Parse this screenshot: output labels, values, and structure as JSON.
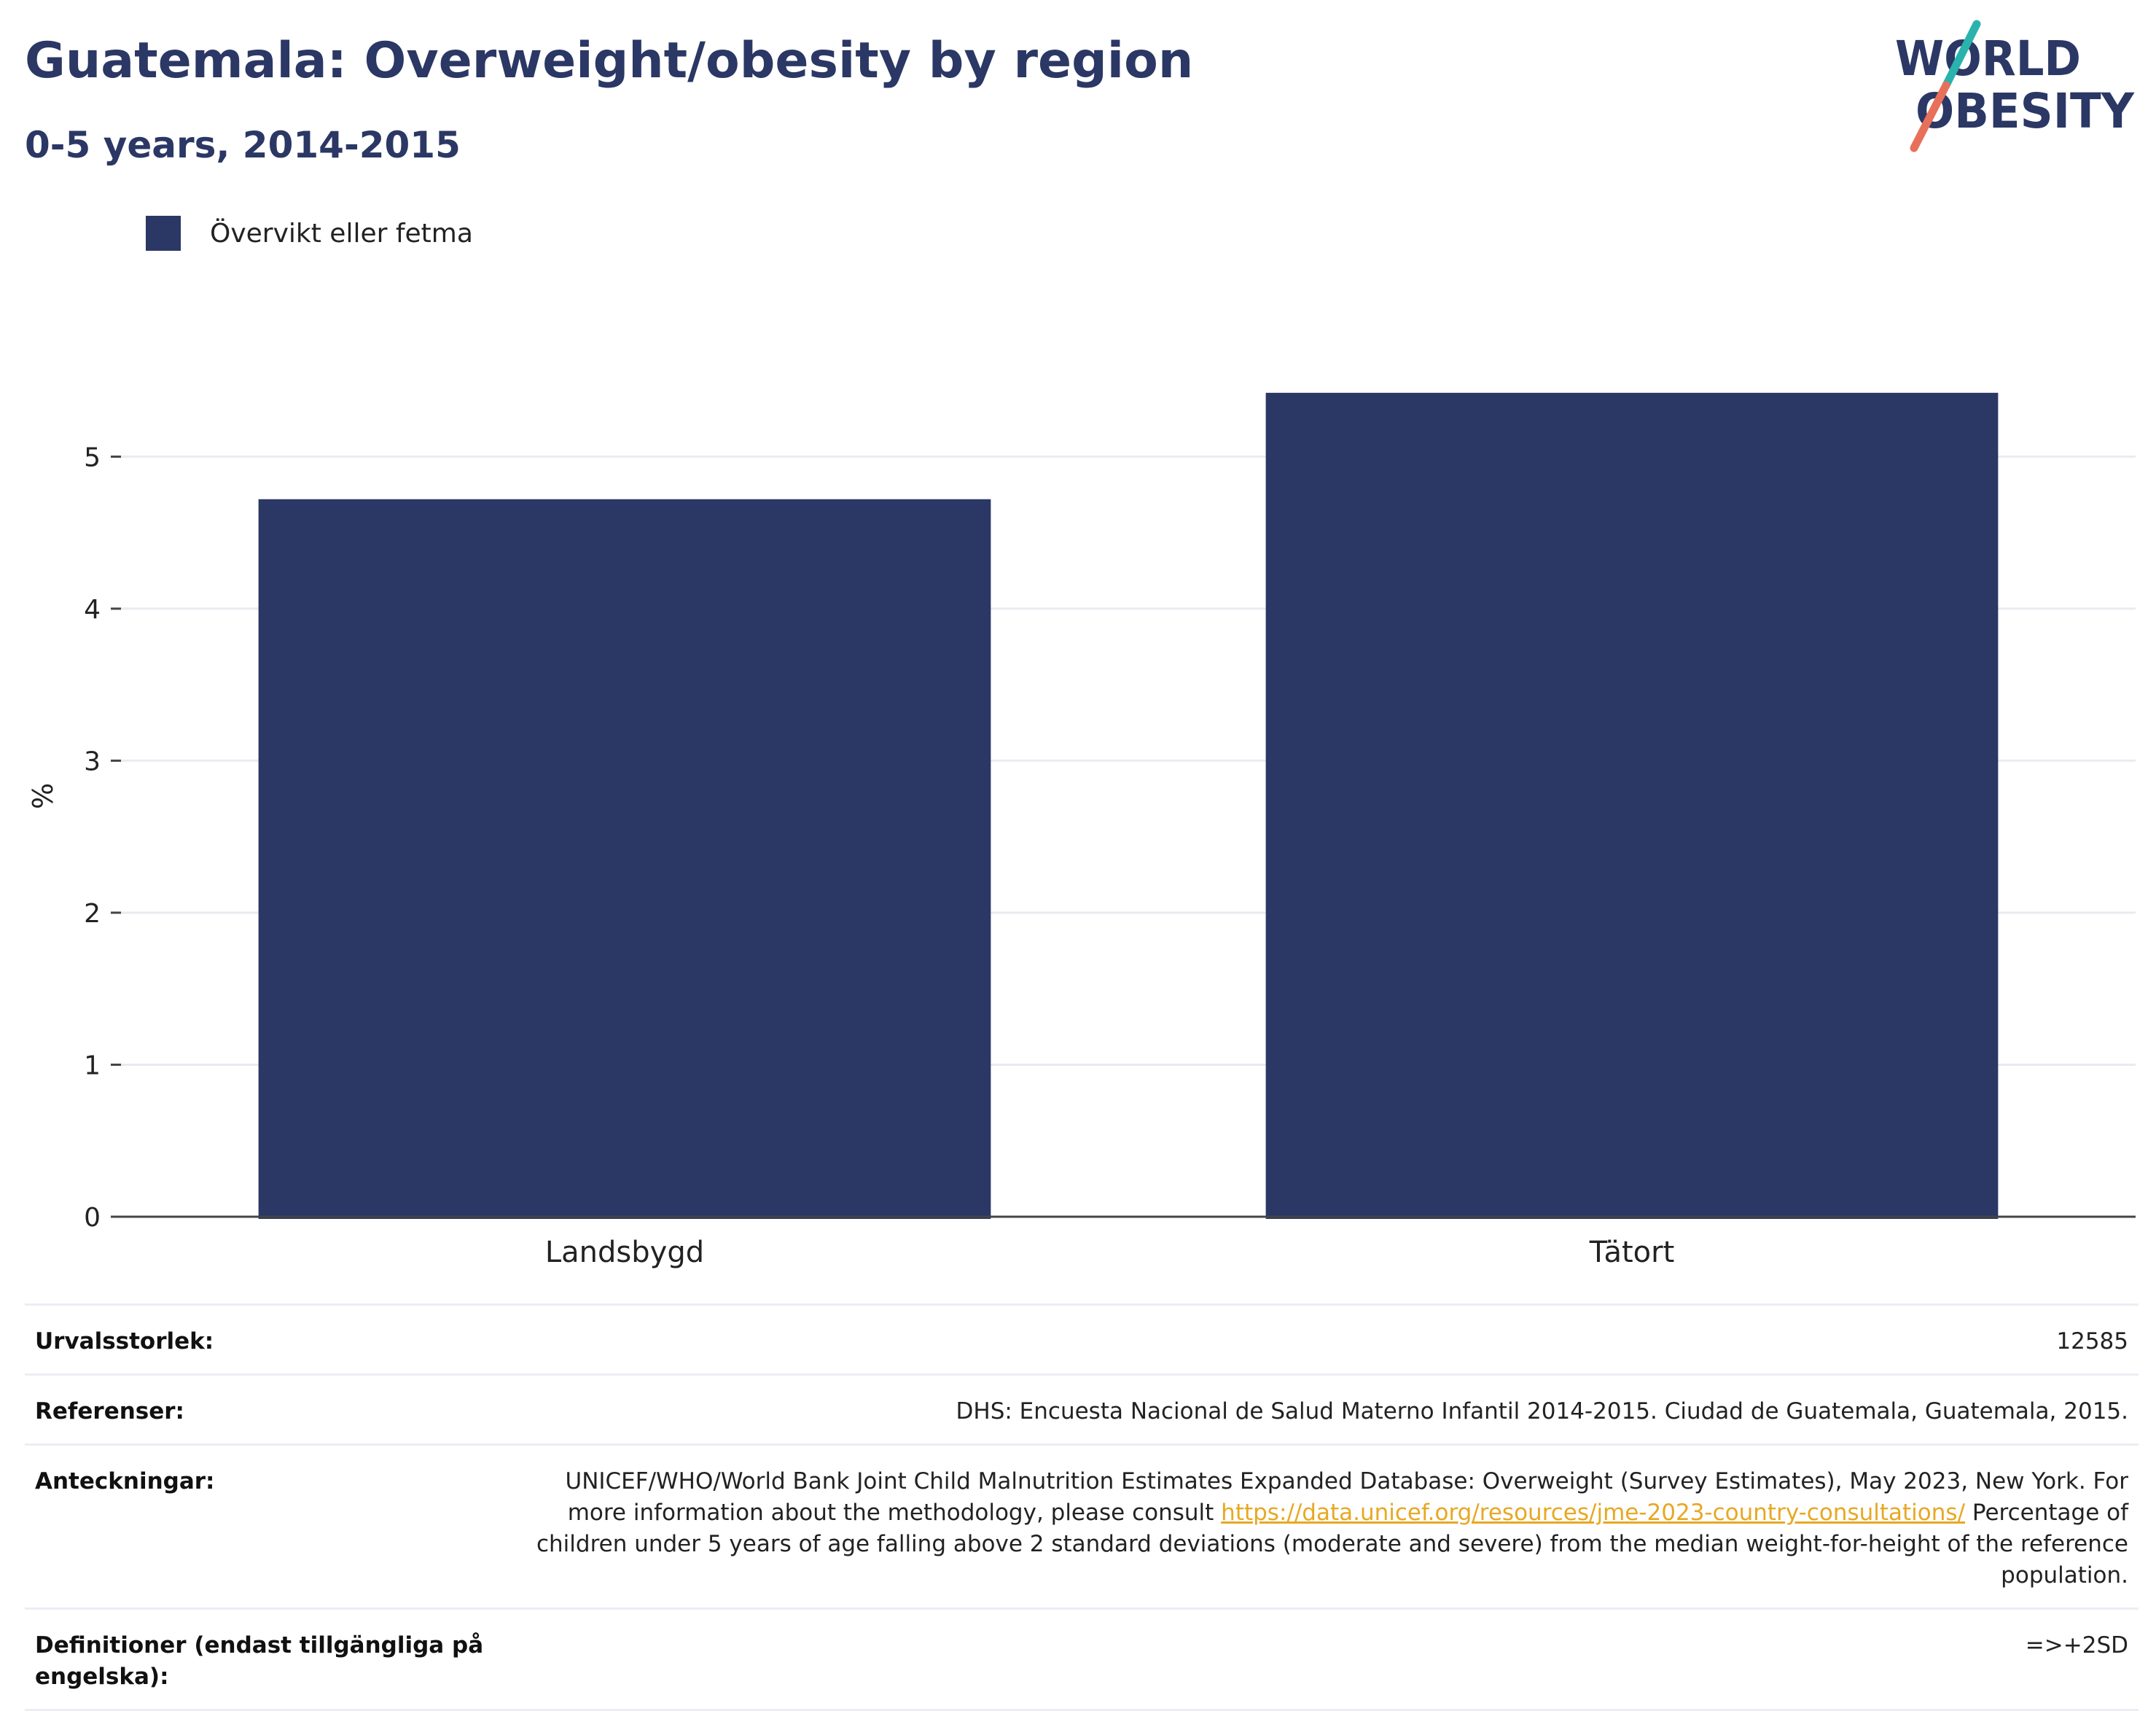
{
  "header": {
    "title": "Guatemala: Overweight/obesity by region",
    "subtitle": "0-5 years, 2014-2015"
  },
  "logo": {
    "line1": "WORLD",
    "line2": "OBESITY",
    "colors": {
      "text": "#2b3764",
      "teal": "#2ab3ad",
      "coral": "#e8705a"
    }
  },
  "legend": {
    "items": [
      {
        "label": "Övervikt eller fetma",
        "color": "#2b3764"
      }
    ]
  },
  "chart_data": {
    "type": "bar",
    "categories": [
      "Landsbygd",
      "Tätort"
    ],
    "series": [
      {
        "name": "Övervikt eller fetma",
        "values": [
          4.72,
          5.42
        ],
        "color": "#2b3764"
      }
    ],
    "ylabel": "%",
    "ylim": [
      0,
      5.75
    ],
    "yticks": [
      0,
      1,
      2,
      3,
      4,
      5
    ],
    "grid": true,
    "legend_position": "top-left"
  },
  "info": {
    "sample_size_label": "Urvalsstorlek:",
    "sample_size_value": "12585",
    "references_label": "Referenser:",
    "references_value": "DHS: Encuesta Nacional de Salud Materno Infantil 2014-2015. Ciudad de Guatemala, Guatemala, 2015.",
    "notes_label": "Anteckningar:",
    "notes_text_1": "UNICEF/WHO/World Bank Joint Child Malnutrition Estimates Expanded Database: Overweight (Survey Estimates), May 2023, New York. For more information about the methodology, please consult ",
    "notes_link": "https://data.unicef.org/resources/jme-2023-country-consultations/",
    "notes_text_2": "Percentage of children under 5 years of age falling above 2 standard deviations (moderate and severe) from the median weight-for-height of the reference population.",
    "definitions_label": "Definitioner (endast tillgängliga på engelska):",
    "definitions_value": "=>+2SD"
  }
}
